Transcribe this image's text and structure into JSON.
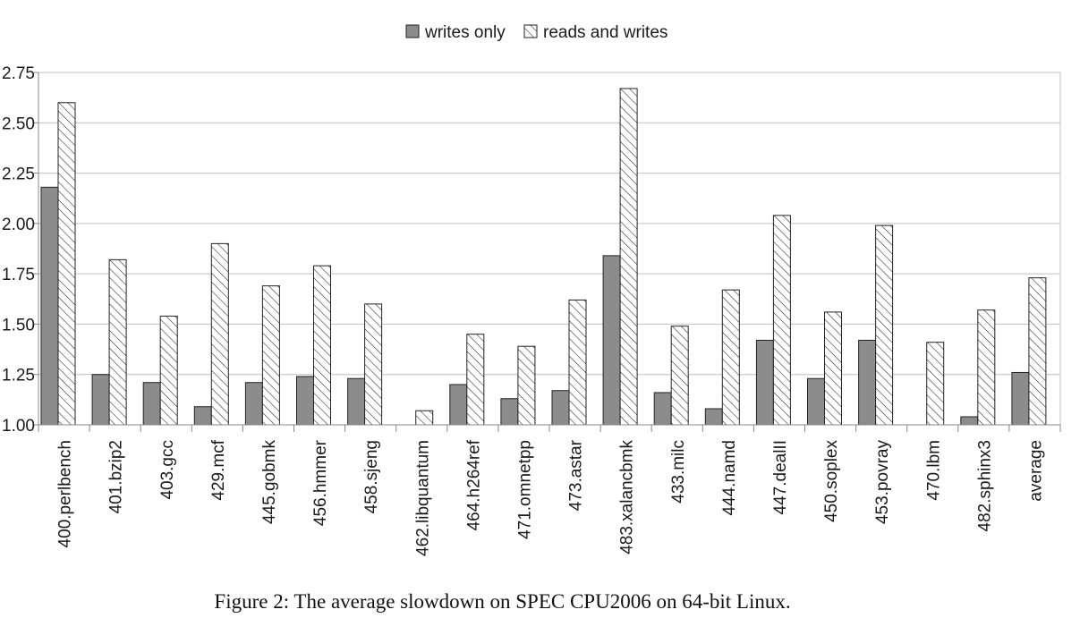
{
  "legend": {
    "writes_only": "writes only",
    "reads_and_writes": "reads and writes"
  },
  "caption": "Figure 2: The average slowdown on SPEC CPU2006 on 64-bit Linux.",
  "colors": {
    "writes_only_fill": "#8c8c8c",
    "hatch": "#222222",
    "grid": "#c0c0c0",
    "axis": "#888888"
  },
  "chart_data": {
    "type": "bar",
    "title": "",
    "xlabel": "",
    "ylabel": "",
    "ylim": [
      1.0,
      2.75
    ],
    "yticks": [
      "1.00",
      "1.25",
      "1.50",
      "1.75",
      "2.00",
      "2.25",
      "2.50",
      "2.75"
    ],
    "grid": true,
    "legend_position": "top-center",
    "categories": [
      "400.perlbench",
      "401.bzip2",
      "403.gcc",
      "429.mcf",
      "445.gobmk",
      "456.hmmer",
      "458.sjeng",
      "462.libquantum",
      "464.h264ref",
      "471.omnetpp",
      "473.astar",
      "483.xalancbmk",
      "433.milc",
      "444.namd",
      "447.dealII",
      "450.soplex",
      "453.povray",
      "470.lbm",
      "482.sphinx3",
      "average"
    ],
    "series": [
      {
        "name": "writes only",
        "style": "solid-gray",
        "values": [
          2.18,
          1.25,
          1.21,
          1.09,
          1.21,
          1.24,
          1.23,
          null,
          1.2,
          1.13,
          1.17,
          1.84,
          1.16,
          1.08,
          1.42,
          1.23,
          1.42,
          null,
          1.04,
          1.26
        ]
      },
      {
        "name": "reads and writes",
        "style": "hatched",
        "values": [
          2.6,
          1.82,
          1.54,
          1.9,
          1.69,
          1.79,
          1.6,
          1.07,
          1.45,
          1.39,
          1.62,
          2.67,
          1.49,
          1.67,
          2.04,
          1.56,
          1.99,
          1.41,
          1.57,
          1.73
        ]
      }
    ]
  }
}
